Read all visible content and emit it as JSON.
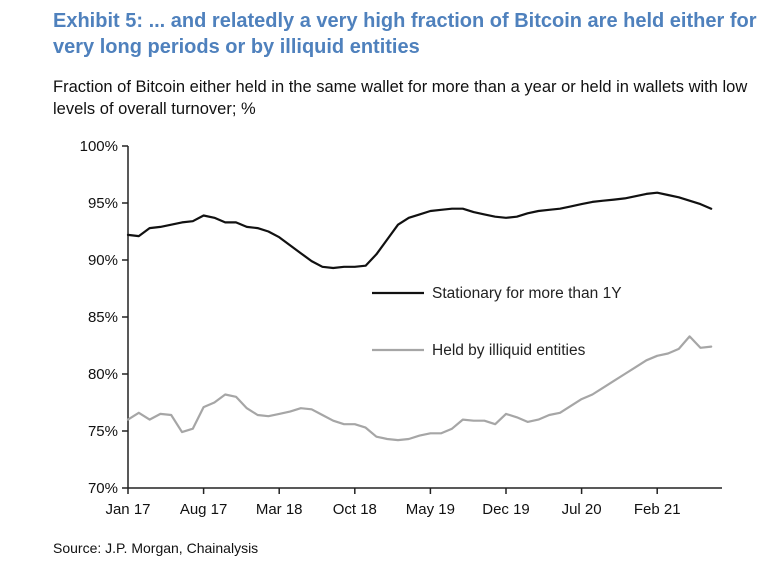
{
  "header": {
    "title": "Exhibit 5: ... and relatedly a very high fraction of Bitcoin are held either for very long periods or by illiquid entities",
    "subtitle": "Fraction of Bitcoin either held in the same wallet for more than a year or held in wallets with low levels of overall turnover; %"
  },
  "footer": {
    "source": "Source: J.P. Morgan, Chainalysis"
  },
  "colors": {
    "title": "#4f81bd",
    "stationary": "#111111",
    "illiquid": "#a6a6a6",
    "axis": "#222222"
  },
  "chart_data": {
    "type": "line",
    "title": "",
    "xlabel": "",
    "ylabel": "",
    "ylim": [
      70,
      100
    ],
    "yticks": [
      70,
      75,
      80,
      85,
      90,
      95,
      100
    ],
    "ytick_labels": [
      "70%",
      "75%",
      "80%",
      "85%",
      "90%",
      "95%",
      "100%"
    ],
    "xticks": [
      "2017-01",
      "2017-08",
      "2018-03",
      "2018-10",
      "2019-05",
      "2019-12",
      "2020-07",
      "2021-02"
    ],
    "xtick_labels": [
      "Jan 17",
      "Aug 17",
      "Mar 18",
      "Oct 18",
      "May 19",
      "Dec 19",
      "Jul 20",
      "Feb 21"
    ],
    "xlim": [
      "2017-01",
      "2021-08"
    ],
    "grid": false,
    "legend": "inside-right",
    "series": [
      {
        "name": "Stationary for more than 1Y",
        "color": "#111111",
        "x": [
          "2017-01",
          "2017-02",
          "2017-03",
          "2017-04",
          "2017-05",
          "2017-06",
          "2017-07",
          "2017-08",
          "2017-09",
          "2017-10",
          "2017-11",
          "2017-12",
          "2018-01",
          "2018-02",
          "2018-03",
          "2018-04",
          "2018-05",
          "2018-06",
          "2018-07",
          "2018-08",
          "2018-09",
          "2018-10",
          "2018-11",
          "2018-12",
          "2019-01",
          "2019-02",
          "2019-03",
          "2019-04",
          "2019-05",
          "2019-06",
          "2019-07",
          "2019-08",
          "2019-09",
          "2019-10",
          "2019-11",
          "2019-12",
          "2020-01",
          "2020-02",
          "2020-03",
          "2020-04",
          "2020-05",
          "2020-06",
          "2020-07",
          "2020-08",
          "2020-09",
          "2020-10",
          "2020-11",
          "2020-12",
          "2021-01",
          "2021-02",
          "2021-03",
          "2021-04",
          "2021-05",
          "2021-06",
          "2021-07"
        ],
        "values": [
          92.2,
          92.1,
          92.8,
          92.9,
          93.1,
          93.3,
          93.4,
          93.9,
          93.7,
          93.3,
          93.3,
          92.9,
          92.8,
          92.5,
          92.0,
          91.3,
          90.6,
          89.9,
          89.4,
          89.3,
          89.4,
          89.4,
          89.5,
          90.5,
          91.8,
          93.1,
          93.7,
          94.0,
          94.3,
          94.4,
          94.5,
          94.5,
          94.2,
          94.0,
          93.8,
          93.7,
          93.8,
          94.1,
          94.3,
          94.4,
          94.5,
          94.7,
          94.9,
          95.1,
          95.2,
          95.3,
          95.4,
          95.6,
          95.8,
          95.9,
          95.7,
          95.5,
          95.2,
          94.9,
          94.5
        ]
      },
      {
        "name": "Held by illiquid entities",
        "color": "#a6a6a6",
        "x": [
          "2017-01",
          "2017-02",
          "2017-03",
          "2017-04",
          "2017-05",
          "2017-06",
          "2017-07",
          "2017-08",
          "2017-09",
          "2017-10",
          "2017-11",
          "2017-12",
          "2018-01",
          "2018-02",
          "2018-03",
          "2018-04",
          "2018-05",
          "2018-06",
          "2018-07",
          "2018-08",
          "2018-09",
          "2018-10",
          "2018-11",
          "2018-12",
          "2019-01",
          "2019-02",
          "2019-03",
          "2019-04",
          "2019-05",
          "2019-06",
          "2019-07",
          "2019-08",
          "2019-09",
          "2019-10",
          "2019-11",
          "2019-12",
          "2020-01",
          "2020-02",
          "2020-03",
          "2020-04",
          "2020-05",
          "2020-06",
          "2020-07",
          "2020-08",
          "2020-09",
          "2020-10",
          "2020-11",
          "2020-12",
          "2021-01",
          "2021-02",
          "2021-03",
          "2021-04",
          "2021-05",
          "2021-06",
          "2021-07"
        ],
        "values": [
          76.0,
          76.6,
          76.0,
          76.5,
          76.4,
          74.9,
          75.2,
          77.1,
          77.5,
          78.2,
          78.0,
          77.0,
          76.4,
          76.3,
          76.5,
          76.7,
          77.0,
          76.9,
          76.4,
          75.9,
          75.6,
          75.6,
          75.3,
          74.5,
          74.3,
          74.2,
          74.3,
          74.6,
          74.8,
          74.8,
          75.2,
          76.0,
          75.9,
          75.9,
          75.6,
          76.5,
          76.2,
          75.8,
          76.0,
          76.4,
          76.6,
          77.2,
          77.8,
          78.2,
          78.8,
          79.4,
          80.0,
          80.6,
          81.2,
          81.6,
          81.8,
          82.2,
          83.3,
          82.3,
          82.4
        ]
      }
    ]
  }
}
